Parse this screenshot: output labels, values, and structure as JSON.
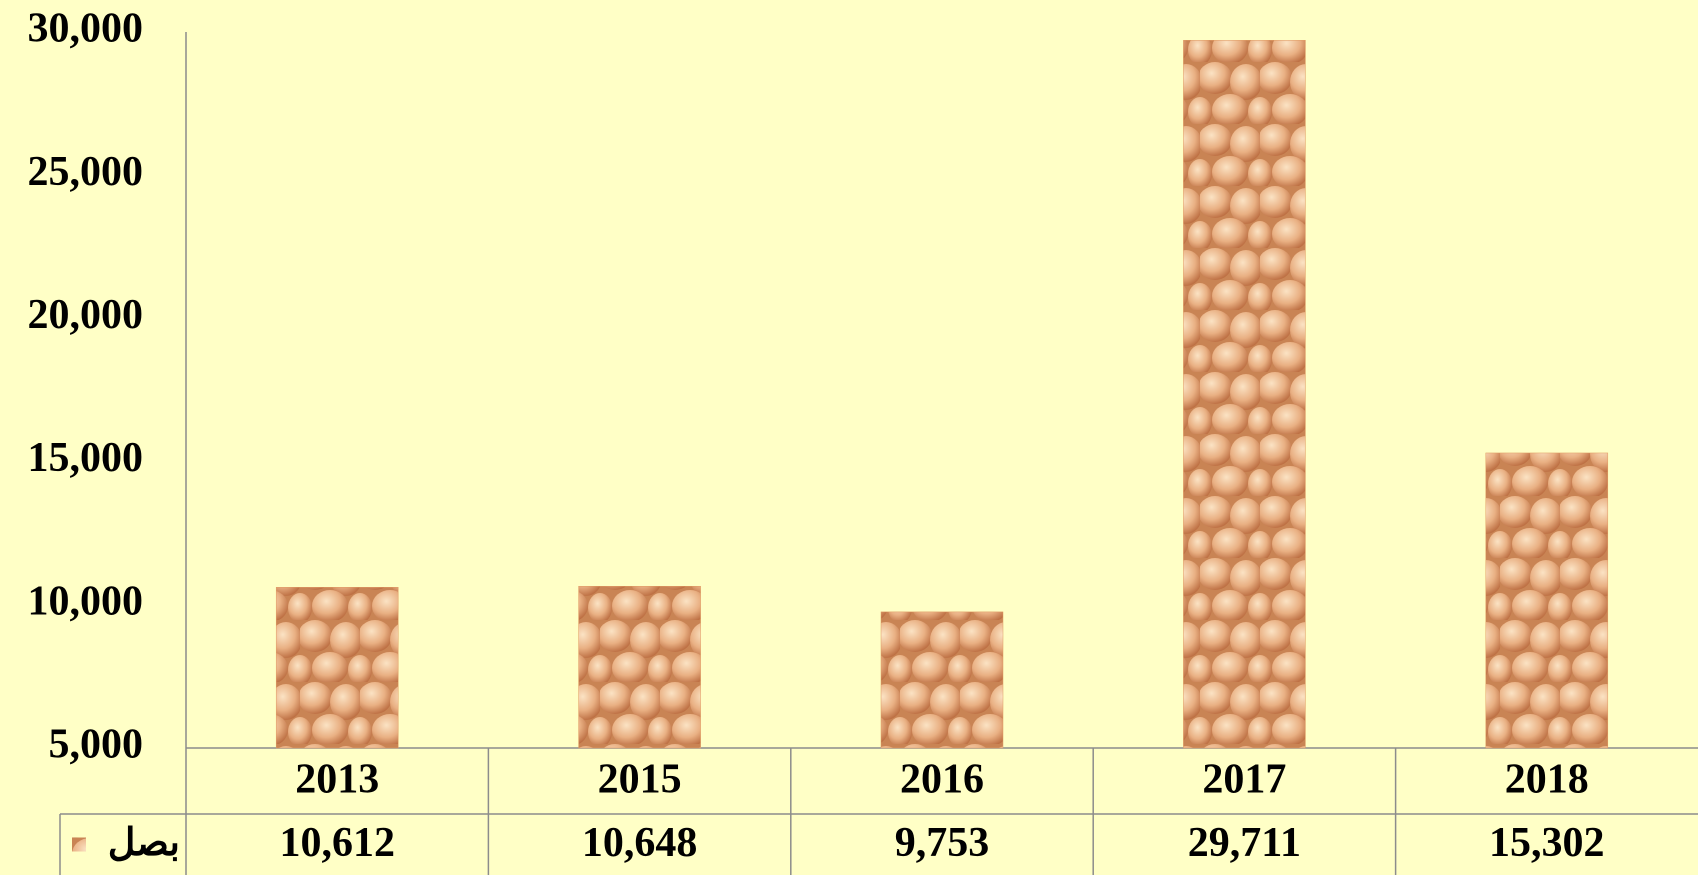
{
  "chart_data": {
    "type": "bar",
    "categories": [
      "2013",
      "2015",
      "2016",
      "2017",
      "2018"
    ],
    "series": [
      {
        "name": "بصل",
        "color": "#e09a62",
        "values": [
          10612,
          10648,
          9753,
          29711,
          15302
        ],
        "value_labels": [
          "10,612",
          "10,648",
          "9,753",
          "29,711",
          "15,302"
        ]
      }
    ],
    "ylim": [
      5000,
      30000
    ],
    "yticks": [
      {
        "value": 5000,
        "label": "5,000"
      },
      {
        "value": 10000,
        "label": "10,000"
      },
      {
        "value": 15000,
        "label": "15,000"
      },
      {
        "value": 20000,
        "label": "20,000"
      },
      {
        "value": 25000,
        "label": "25,000"
      },
      {
        "value": 30000,
        "label": "30,000"
      }
    ],
    "grid": false
  }
}
